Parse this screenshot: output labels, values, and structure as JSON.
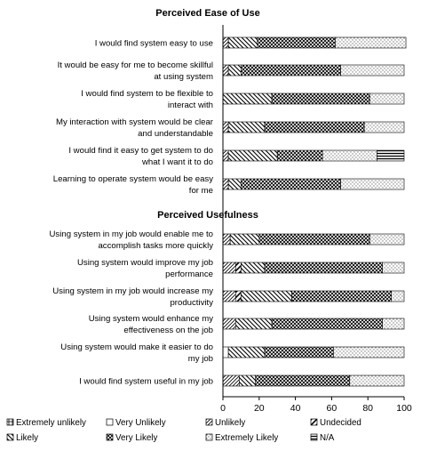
{
  "chart_data": {
    "type": "bar",
    "stacked": true,
    "orientation": "horizontal",
    "xlim": [
      0,
      100
    ],
    "xticks": [
      "0",
      "20",
      "40",
      "60",
      "80",
      "100"
    ],
    "grid": false,
    "legend_position": "bottom",
    "series_names": [
      "Extremely unlikely",
      "Very Unlikely",
      "Unlikely",
      "Undecided",
      "Likely",
      "Very Likely",
      "Extremely Likely",
      "N/A"
    ],
    "panels": [
      {
        "title": "Perceived Ease of Use",
        "categories": [
          [
            "I would find system easy to use"
          ],
          [
            "It would be easy for me to become skillful",
            "at using system"
          ],
          [
            "I would find system to be flexible to",
            "interact with"
          ],
          [
            "My interaction with system would be clear",
            "and understandable"
          ],
          [
            "I would find it easy to get system to do",
            "what I want it to do"
          ],
          [
            "Learning to operate system would be easy",
            "for me"
          ]
        ],
        "values": [
          [
            0,
            0,
            3,
            0,
            16,
            43,
            39,
            0
          ],
          [
            0,
            0,
            3,
            0,
            7,
            55,
            35,
            0
          ],
          [
            0,
            0,
            0,
            0,
            27,
            54,
            19,
            0
          ],
          [
            0,
            0,
            3,
            0,
            20,
            55,
            22,
            0
          ],
          [
            0,
            0,
            3,
            0,
            27,
            25,
            30,
            15
          ],
          [
            0,
            0,
            3,
            0,
            7,
            55,
            35,
            0
          ]
        ]
      },
      {
        "title": "Perceived Usefulness",
        "categories": [
          [
            "Using system in my job would enable me to",
            "accomplish tasks more quickly"
          ],
          [
            "Using system would improve my job",
            "performance"
          ],
          [
            "Using system in my job would increase my",
            "productivity"
          ],
          [
            "Using system would enhance my",
            "effectiveness on the job"
          ],
          [
            "Using system would make it easier to do",
            "my job"
          ],
          [
            "I would find system useful in my job"
          ]
        ],
        "values": [
          [
            0,
            0,
            4,
            0,
            16,
            61,
            19,
            0
          ],
          [
            0,
            0,
            7,
            3,
            13,
            65,
            12,
            0
          ],
          [
            0,
            0,
            7,
            3,
            28,
            55,
            7,
            0
          ],
          [
            0,
            0,
            7,
            0,
            20,
            61,
            12,
            0
          ],
          [
            0,
            3,
            0,
            0,
            20,
            38,
            39,
            0
          ],
          [
            0,
            0,
            9,
            0,
            9,
            52,
            30,
            0
          ]
        ]
      }
    ]
  }
}
